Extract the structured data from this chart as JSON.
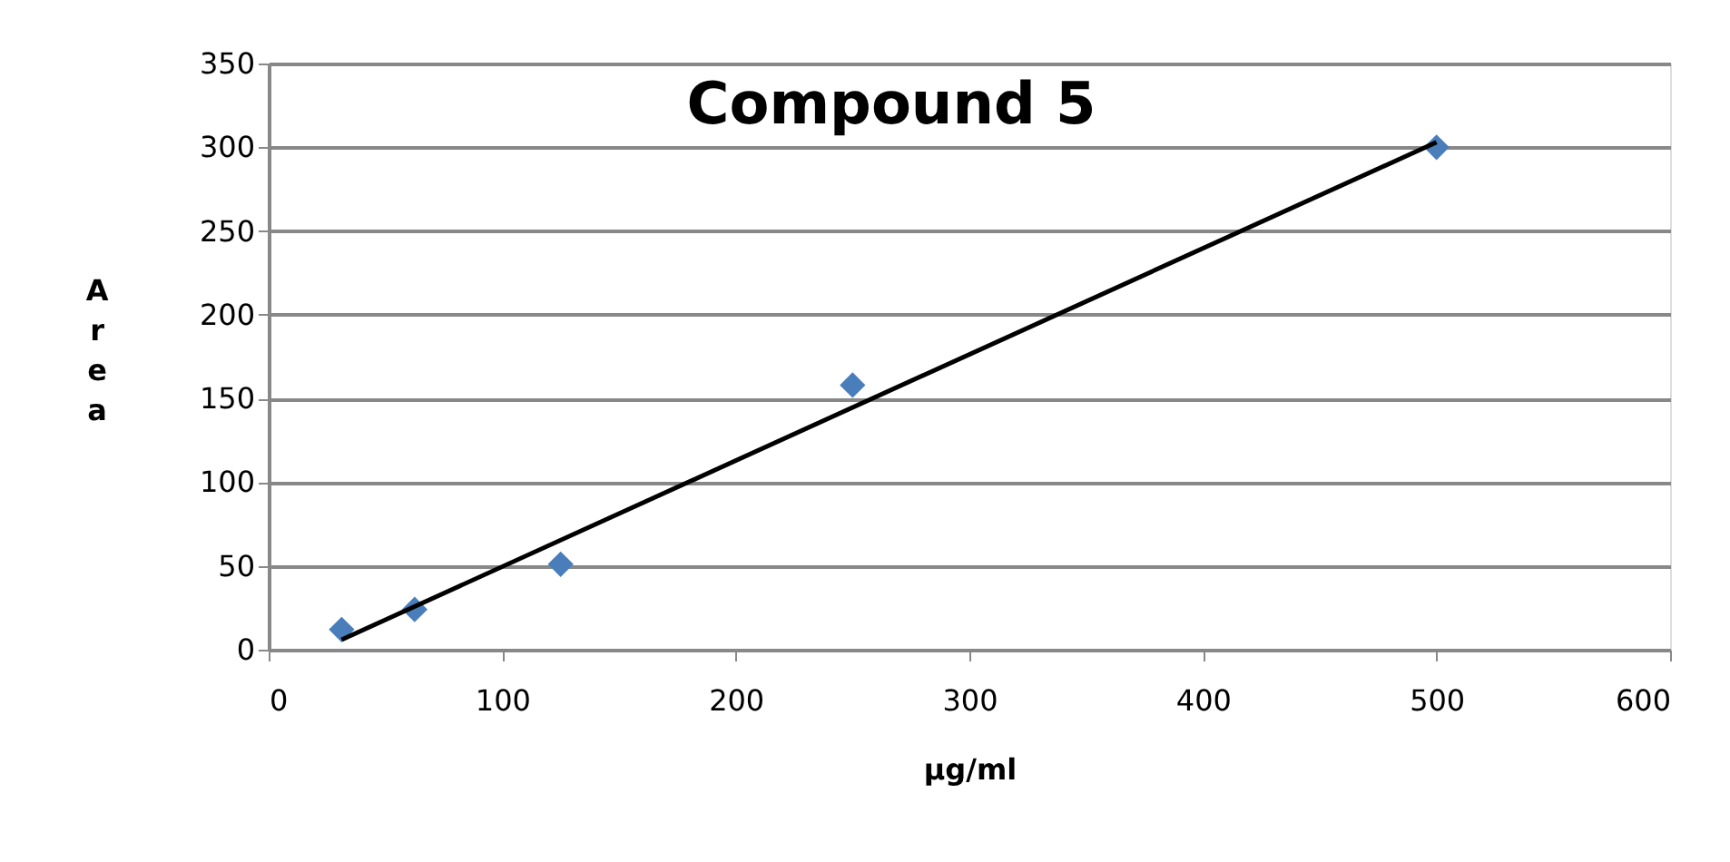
{
  "chart_data": {
    "type": "scatter",
    "title": "Compound 5",
    "xlabel": "µg/ml",
    "ylabel": "Area",
    "xlim": [
      0,
      600
    ],
    "xticks": [
      0,
      100,
      200,
      300,
      400,
      500,
      600
    ],
    "ylim": [
      0,
      350
    ],
    "yticks": [
      0,
      50,
      100,
      150,
      200,
      250,
      300,
      350
    ],
    "grid": "y",
    "marker": "diamond",
    "series": [
      {
        "color": "#4a7ebb",
        "x": [
          31.25,
          62.5,
          125,
          250,
          500
        ],
        "values": [
          12,
          24,
          51,
          158,
          300
        ]
      },
      {
        "type": "line",
        "color": "#000000",
        "x": [
          31.25,
          500
        ],
        "values": [
          6,
          303
        ],
        "marker": "none",
        "line_style": "solid"
      }
    ]
  }
}
